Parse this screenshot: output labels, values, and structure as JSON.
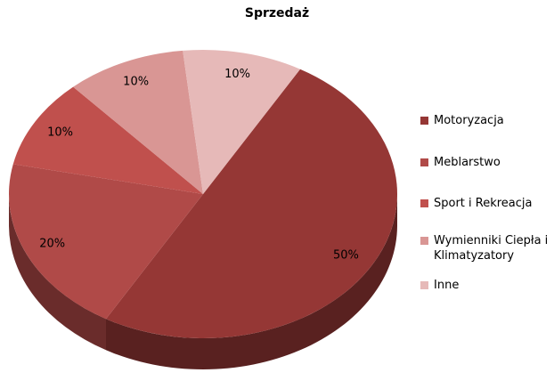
{
  "chart_data": {
    "type": "pie",
    "title": "Sprzedaż",
    "categories": [
      "Motoryzacja",
      "Meblarstwo",
      "Sport i Rekreacja",
      "Wymienniki Ciepła i Klimatyzatory",
      "Inne"
    ],
    "values": [
      50,
      20,
      10,
      10,
      10
    ],
    "value_labels": [
      "50%",
      "20%",
      "10%",
      "10%",
      "10%"
    ],
    "colors": [
      "#953735",
      "#b04a48",
      "#c0504d",
      "#d99694",
      "#e6b9b8"
    ],
    "legend": "right"
  }
}
